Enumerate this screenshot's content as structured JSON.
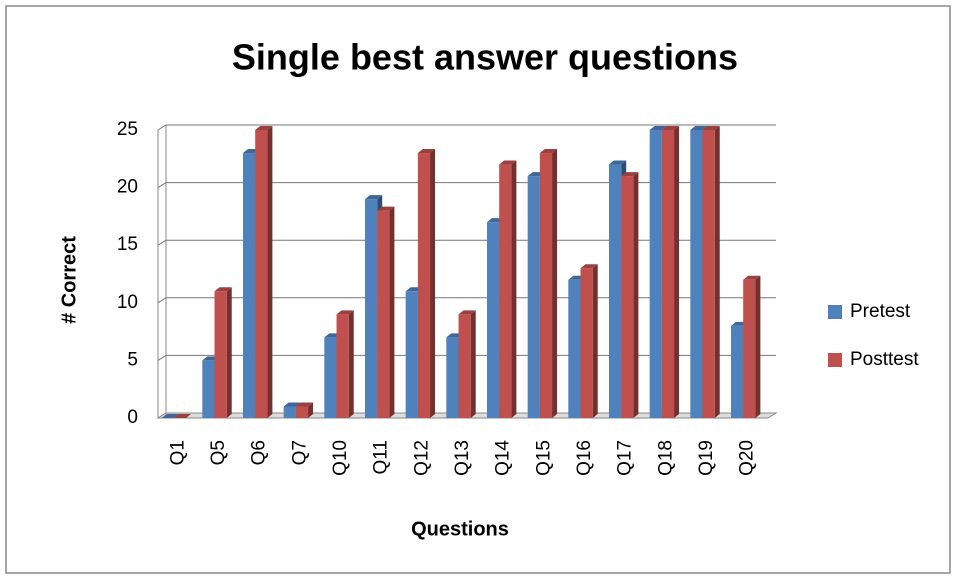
{
  "chart_data": {
    "type": "bar",
    "title": "Single best answer questions",
    "x_label": "Questions",
    "y_label": "# Correct",
    "categories": [
      "Q1",
      "Q5",
      "Q6",
      "Q7",
      "Q10",
      "Q11",
      "Q12",
      "Q13",
      "Q14",
      "Q15",
      "Q16",
      "Q17",
      "Q18",
      "Q19",
      "Q20"
    ],
    "series": [
      {
        "name": "Pretest",
        "color": "#4f81bd",
        "values": [
          0,
          5,
          23,
          1,
          7,
          19,
          11,
          7,
          17,
          21,
          12,
          22,
          25,
          25,
          8
        ]
      },
      {
        "name": "Posttest",
        "color": "#c0504d",
        "values": [
          0,
          11,
          25,
          1,
          9,
          18,
          23,
          9,
          22,
          23,
          13,
          21,
          25,
          25,
          12
        ]
      }
    ],
    "ylim": [
      0,
      25
    ],
    "yticks": [
      0,
      5,
      10,
      15,
      20,
      25
    ],
    "grid": true,
    "legend": "right"
  }
}
